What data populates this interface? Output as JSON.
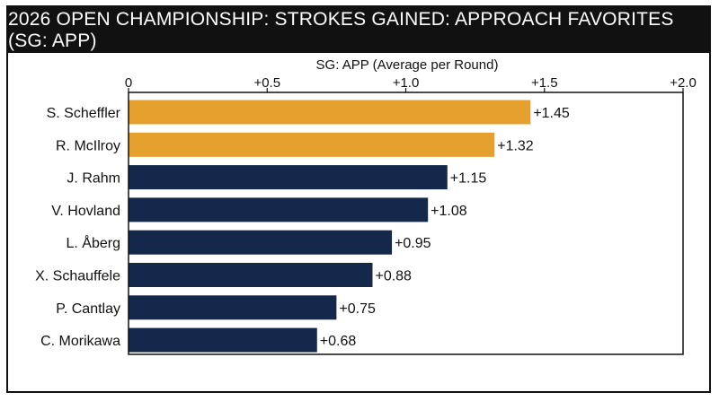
{
  "title": "2026 OPEN CHAMPIONSHIP: STROKES GAINED: APPROACH FAVORITES (SG: APP)",
  "chart_data": {
    "type": "bar",
    "orientation": "horizontal",
    "title": "2026 OPEN CHAMPIONSHIP: STROKES GAINED: APPROACH FAVORITES (SG: APP)",
    "xlabel": "SG: APP (Average per Round)",
    "ylabel": "",
    "xlim": [
      0,
      2.0
    ],
    "x_ticks": [
      0,
      0.5,
      1.0,
      1.5,
      2.0
    ],
    "x_tick_labels": [
      "0",
      "+0.5",
      "+1.0",
      "+1.5",
      "+2.0"
    ],
    "x_axis_position": "top",
    "grid": false,
    "categories": [
      "S. Scheffler",
      "R. McIlroy",
      "J. Rahm",
      "V. Hovland",
      "L. Åberg",
      "X. Schauffele",
      "P. Cantlay",
      "C. Morikawa"
    ],
    "values": [
      1.45,
      1.32,
      1.15,
      1.08,
      0.95,
      0.88,
      0.75,
      0.68
    ],
    "value_labels": [
      "+1.45",
      "+1.32",
      "+1.15",
      "+1.08",
      "+0.95",
      "+0.88",
      "+0.75",
      "+0.68"
    ],
    "bar_colors": [
      "#E5A02E",
      "#E5A02E",
      "#14284B",
      "#14284B",
      "#14284B",
      "#14284B",
      "#14284B",
      "#14284B"
    ]
  }
}
